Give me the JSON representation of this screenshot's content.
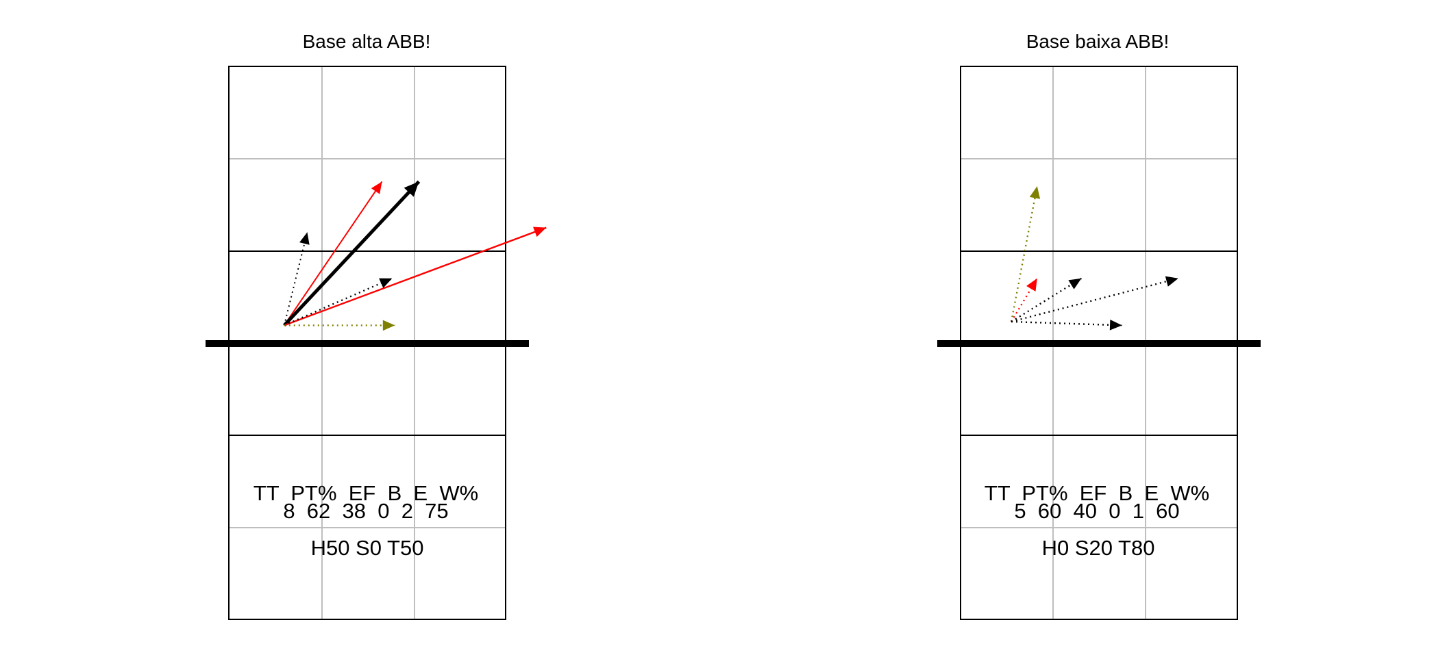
{
  "colors": {
    "kill": "#ff0000",
    "neutral": "#000000",
    "error": "#808000",
    "grid_light": "#bebebe",
    "line": "#000000"
  },
  "panels": [
    {
      "title": "Base alta ABB!",
      "stats_header": "TT  PT%  EF  B  E  W%",
      "stats_values": "8  62  38  0  2  75",
      "hst": "H50 S0 T50",
      "attacks": [
        {
          "start": [
            0.6,
            3.19
          ],
          "end": [
            0.85,
            4.2
          ],
          "color": "neutral",
          "style": "dotted",
          "weight": 1
        },
        {
          "start": [
            0.6,
            3.19
          ],
          "end": [
            1.66,
            4.75
          ],
          "color": "kill",
          "style": "solid",
          "weight": 1
        },
        {
          "start": [
            0.6,
            3.19
          ],
          "end": [
            2.06,
            4.75
          ],
          "color": "neutral",
          "style": "solid",
          "weight": 2.5
        },
        {
          "start": [
            0.6,
            3.19
          ],
          "end": [
            3.44,
            4.25
          ],
          "color": "kill",
          "style": "solid",
          "weight": 1.2
        },
        {
          "start": [
            0.6,
            3.19
          ],
          "end": [
            1.77,
            3.7
          ],
          "color": "neutral",
          "style": "dotted",
          "weight": 1.2
        },
        {
          "start": [
            0.6,
            3.19
          ],
          "end": [
            1.8,
            3.19
          ],
          "color": "error",
          "style": "dotted",
          "weight": 1.2
        }
      ]
    },
    {
      "title": "Base baixa ABB!",
      "stats_header": "TT  PT%  EF  B  E  W%",
      "stats_values": "5  60  40  0  1  60",
      "hst": "H0 S20 T80",
      "attacks": [
        {
          "start": [
            0.55,
            3.23
          ],
          "end": [
            0.83,
            4.7
          ],
          "color": "error",
          "style": "dotted",
          "weight": 1.2
        },
        {
          "start": [
            0.55,
            3.23
          ],
          "end": [
            0.83,
            3.7
          ],
          "color": "kill",
          "style": "dotted",
          "weight": 1.2
        },
        {
          "start": [
            0.55,
            3.23
          ],
          "end": [
            1.31,
            3.7
          ],
          "color": "neutral",
          "style": "dotted",
          "weight": 1.2
        },
        {
          "start": [
            0.55,
            3.23
          ],
          "end": [
            2.36,
            3.7
          ],
          "color": "neutral",
          "style": "dotted",
          "weight": 1.2
        },
        {
          "start": [
            0.55,
            3.23
          ],
          "end": [
            1.75,
            3.19
          ],
          "color": "neutral",
          "style": "dotted",
          "weight": 1.2
        }
      ]
    }
  ]
}
